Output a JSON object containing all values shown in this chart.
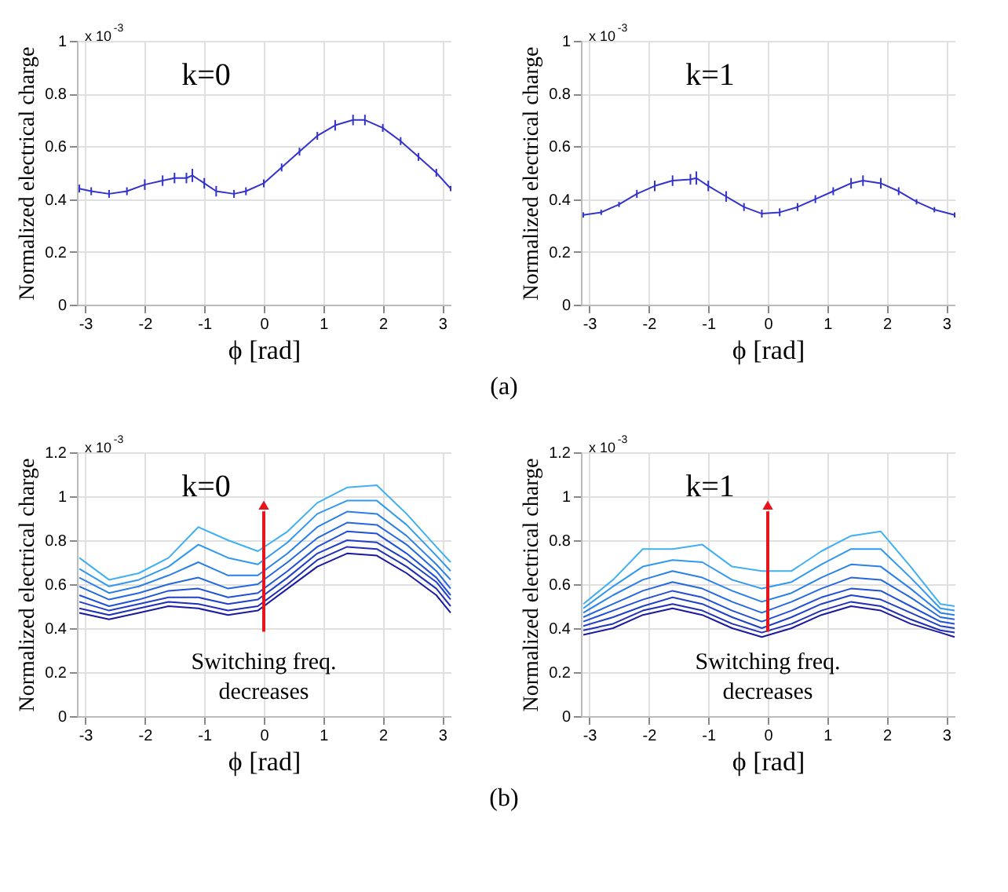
{
  "chart_data": [
    {
      "type": "line",
      "title": "k=0",
      "xlabel": "ϕ [rad]",
      "ylabel": "Normalized electrical charge",
      "xlim": [
        -3.14,
        3.14
      ],
      "xticks": [
        -3,
        -2,
        -1,
        0,
        1,
        2,
        3
      ],
      "ylim": [
        0,
        1
      ],
      "yticks": [
        0,
        0.2,
        0.4,
        0.6,
        0.8,
        1
      ],
      "grid": true,
      "annotations": [
        "x 10$^{-3}$"
      ],
      "x": [
        -3.1,
        -2.9,
        -2.6,
        -2.3,
        -2.0,
        -1.7,
        -1.5,
        -1.3,
        -1.2,
        -1.0,
        -0.8,
        -0.5,
        -0.3,
        0,
        0.3,
        0.6,
        0.9,
        1.2,
        1.5,
        1.7,
        2.0,
        2.3,
        2.6,
        2.9,
        3.14
      ],
      "series": [
        {
          "color": "#3333cc",
          "values": [
            0.44,
            0.43,
            0.42,
            0.43,
            0.455,
            0.47,
            0.48,
            0.48,
            0.49,
            0.46,
            0.43,
            0.42,
            0.43,
            0.46,
            0.52,
            0.58,
            0.64,
            0.68,
            0.7,
            0.7,
            0.67,
            0.62,
            0.56,
            0.5,
            0.44
          ],
          "errors": [
            0.015,
            0.015,
            0.015,
            0.015,
            0.02,
            0.02,
            0.02,
            0.02,
            0.025,
            0.02,
            0.02,
            0.015,
            0.015,
            0.015,
            0.015,
            0.015,
            0.015,
            0.02,
            0.02,
            0.02,
            0.015,
            0.015,
            0.015,
            0.015,
            0.01
          ]
        }
      ]
    },
    {
      "type": "line",
      "title": "k=1",
      "xlabel": "ϕ [rad]",
      "ylabel": "Normalized electrical charge",
      "xlim": [
        -3.14,
        3.14
      ],
      "xticks": [
        -3,
        -2,
        -1,
        0,
        1,
        2,
        3
      ],
      "ylim": [
        0,
        1
      ],
      "yticks": [
        0,
        0.2,
        0.4,
        0.6,
        0.8,
        1
      ],
      "grid": true,
      "annotations": [
        "x 10$^{-3}$",
        "(a)"
      ],
      "x": [
        -3.1,
        -2.8,
        -2.5,
        -2.2,
        -1.9,
        -1.6,
        -1.3,
        -1.2,
        -1.0,
        -0.7,
        -0.4,
        -0.1,
        0.2,
        0.5,
        0.8,
        1.1,
        1.4,
        1.6,
        1.9,
        2.2,
        2.5,
        2.8,
        3.14
      ],
      "series": [
        {
          "color": "#3333cc",
          "values": [
            0.34,
            0.35,
            0.38,
            0.42,
            0.45,
            0.47,
            0.475,
            0.48,
            0.45,
            0.41,
            0.37,
            0.345,
            0.35,
            0.37,
            0.4,
            0.43,
            0.46,
            0.47,
            0.46,
            0.43,
            0.39,
            0.36,
            0.34
          ],
          "errors": [
            0.01,
            0.01,
            0.01,
            0.015,
            0.02,
            0.02,
            0.02,
            0.025,
            0.02,
            0.02,
            0.015,
            0.015,
            0.015,
            0.015,
            0.015,
            0.015,
            0.02,
            0.02,
            0.02,
            0.015,
            0.01,
            0.01,
            0.01
          ]
        }
      ]
    },
    {
      "type": "line",
      "title": "k=0",
      "xlabel": "ϕ [rad]",
      "ylabel": "Normalized electrical charge",
      "xlim": [
        -3.14,
        3.14
      ],
      "xticks": [
        -3,
        -2,
        -1,
        0,
        1,
        2,
        3
      ],
      "ylim": [
        0,
        1.2
      ],
      "yticks": [
        0,
        0.2,
        0.4,
        0.6,
        0.8,
        1,
        1.2
      ],
      "grid": true,
      "annotations": [
        "x 10$^{-3}$",
        "Switching freq. decreases"
      ],
      "x": [
        -3.1,
        -2.6,
        -2.1,
        -1.6,
        -1.1,
        -0.6,
        -0.1,
        0.4,
        0.9,
        1.4,
        1.9,
        2.4,
        2.9,
        3.14
      ],
      "series": [
        {
          "color": "#1a1aa0",
          "values": [
            0.47,
            0.44,
            0.47,
            0.5,
            0.49,
            0.46,
            0.48,
            0.58,
            0.68,
            0.74,
            0.73,
            0.65,
            0.55,
            0.47
          ]
        },
        {
          "color": "#1f2fb5",
          "values": [
            0.49,
            0.46,
            0.49,
            0.52,
            0.51,
            0.48,
            0.5,
            0.6,
            0.71,
            0.77,
            0.76,
            0.68,
            0.58,
            0.5
          ]
        },
        {
          "color": "#2040c8",
          "values": [
            0.52,
            0.48,
            0.51,
            0.54,
            0.54,
            0.51,
            0.53,
            0.63,
            0.74,
            0.8,
            0.79,
            0.71,
            0.61,
            0.53
          ]
        },
        {
          "color": "#2050d8",
          "values": [
            0.55,
            0.5,
            0.53,
            0.57,
            0.58,
            0.54,
            0.56,
            0.66,
            0.77,
            0.84,
            0.83,
            0.74,
            0.63,
            0.55
          ]
        },
        {
          "color": "#2468e0",
          "values": [
            0.59,
            0.53,
            0.56,
            0.6,
            0.63,
            0.58,
            0.6,
            0.7,
            0.81,
            0.88,
            0.87,
            0.78,
            0.66,
            0.58
          ]
        },
        {
          "color": "#2a80e8",
          "values": [
            0.63,
            0.56,
            0.59,
            0.64,
            0.7,
            0.64,
            0.64,
            0.74,
            0.86,
            0.93,
            0.92,
            0.82,
            0.69,
            0.62
          ]
        },
        {
          "color": "#3098ee",
          "values": [
            0.67,
            0.59,
            0.62,
            0.68,
            0.78,
            0.72,
            0.69,
            0.79,
            0.92,
            0.98,
            0.98,
            0.87,
            0.73,
            0.66
          ]
        },
        {
          "color": "#40b0f0",
          "values": [
            0.72,
            0.62,
            0.65,
            0.72,
            0.86,
            0.8,
            0.75,
            0.84,
            0.97,
            1.04,
            1.05,
            0.92,
            0.77,
            0.7
          ]
        }
      ]
    },
    {
      "type": "line",
      "title": "k=1",
      "xlabel": "ϕ [rad]",
      "ylabel": "Normalized electrical charge",
      "xlim": [
        -3.14,
        3.14
      ],
      "xticks": [
        -3,
        -2,
        -1,
        0,
        1,
        2,
        3
      ],
      "ylim": [
        0,
        1.2
      ],
      "yticks": [
        0,
        0.2,
        0.4,
        0.6,
        0.8,
        1,
        1.2
      ],
      "grid": true,
      "annotations": [
        "x 10$^{-3}$",
        "Switching freq. decreases",
        "(b)"
      ],
      "x": [
        -3.1,
        -2.6,
        -2.1,
        -1.6,
        -1.1,
        -0.6,
        -0.1,
        0.4,
        0.9,
        1.4,
        1.9,
        2.4,
        2.9,
        3.14
      ],
      "series": [
        {
          "color": "#1a1aa0",
          "values": [
            0.37,
            0.4,
            0.46,
            0.49,
            0.46,
            0.4,
            0.36,
            0.4,
            0.46,
            0.5,
            0.48,
            0.42,
            0.38,
            0.36
          ]
        },
        {
          "color": "#1f2fb5",
          "values": [
            0.39,
            0.42,
            0.48,
            0.51,
            0.48,
            0.42,
            0.38,
            0.42,
            0.48,
            0.52,
            0.5,
            0.44,
            0.39,
            0.38
          ]
        },
        {
          "color": "#2040c8",
          "values": [
            0.41,
            0.45,
            0.5,
            0.54,
            0.51,
            0.45,
            0.4,
            0.45,
            0.51,
            0.55,
            0.53,
            0.47,
            0.41,
            0.4
          ]
        },
        {
          "color": "#2050d8",
          "values": [
            0.43,
            0.48,
            0.53,
            0.57,
            0.54,
            0.48,
            0.43,
            0.48,
            0.54,
            0.58,
            0.57,
            0.5,
            0.43,
            0.42
          ]
        },
        {
          "color": "#2468e0",
          "values": [
            0.45,
            0.51,
            0.57,
            0.61,
            0.58,
            0.52,
            0.47,
            0.52,
            0.58,
            0.63,
            0.62,
            0.54,
            0.45,
            0.44
          ]
        },
        {
          "color": "#2a80e8",
          "values": [
            0.47,
            0.55,
            0.62,
            0.66,
            0.63,
            0.57,
            0.52,
            0.56,
            0.63,
            0.69,
            0.68,
            0.58,
            0.47,
            0.46
          ]
        },
        {
          "color": "#3098ee",
          "values": [
            0.49,
            0.59,
            0.68,
            0.71,
            0.7,
            0.62,
            0.58,
            0.61,
            0.69,
            0.76,
            0.76,
            0.63,
            0.49,
            0.48
          ]
        },
        {
          "color": "#40b0f0",
          "values": [
            0.51,
            0.62,
            0.76,
            0.76,
            0.78,
            0.68,
            0.66,
            0.66,
            0.75,
            0.82,
            0.84,
            0.68,
            0.51,
            0.5
          ]
        }
      ]
    }
  ]
}
